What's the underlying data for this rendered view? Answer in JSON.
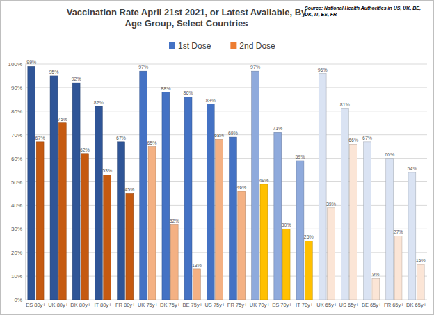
{
  "chart_data": {
    "type": "bar",
    "title": "Vaccination Rate April 21st 2021, or Latest Available, By Age Group, Select Countries",
    "annotations": [
      "Source: National Health Authorities in US, UK, BE, DK, IT, ES, FR"
    ],
    "categories": [
      "ES 80y+",
      "UK 80y+",
      "DK 80y+",
      "IT 80y+",
      "FR 80y+",
      "UK 75y+",
      "DK 75y+",
      "BE 75y+",
      "US 75y+",
      "FR 75y+",
      "UK 70y+",
      "ES 70y+",
      "IT 70y+",
      "UK 65y+",
      "US 65y+",
      "BE 65y+",
      "FR 65y+",
      "DK 65y+"
    ],
    "series": [
      {
        "name": "1st Dose",
        "color": "#4472c4",
        "colors": [
          "#2f5597",
          "#2f5597",
          "#2f5597",
          "#2f5597",
          "#2f5597",
          "#4472c4",
          "#4472c4",
          "#4472c4",
          "#4472c4",
          "#4472c4",
          "#8faadc",
          "#8faadc",
          "#8faadc",
          "#dae3f3",
          "#dae3f3",
          "#dae3f3",
          "#dae3f3",
          "#dae3f3"
        ],
        "values": [
          99,
          95,
          92,
          82,
          67,
          97,
          88,
          86,
          83,
          69,
          97,
          71,
          59,
          96,
          81,
          67,
          60,
          54
        ],
        "value_labels": [
          "99%",
          "95%",
          "92%",
          "82%",
          "67%",
          "97%",
          "88%",
          "86%",
          "83%",
          "69%",
          "97%",
          "71%",
          "59%",
          "96%",
          "81%",
          "67%",
          "60%",
          "54%"
        ]
      },
      {
        "name": "2nd Dose",
        "color": "#ed7d31",
        "colors": [
          "#c55a11",
          "#c55a11",
          "#c55a11",
          "#c55a11",
          "#c55a11",
          "#f4b183",
          "#f4b183",
          "#f4b183",
          "#f4b183",
          "#f4b183",
          "#ffc000",
          "#ffc000",
          "#ffc000",
          "#fbe5d6",
          "#fbe5d6",
          "#fbe5d6",
          "#fbe5d6",
          "#fbe5d6"
        ],
        "values": [
          67,
          75,
          62,
          53,
          45,
          65,
          32,
          13,
          68,
          46,
          49,
          30,
          25,
          39,
          66,
          9,
          27,
          15
        ],
        "value_labels": [
          "67%",
          "75%",
          "62%",
          "53%",
          "45%",
          "65%",
          "32%",
          "13%",
          "68%",
          "46%",
          "49%",
          "30%",
          "25%",
          "39%",
          "66%",
          "9%",
          "27%",
          "15%"
        ]
      }
    ],
    "ylim": [
      0,
      100
    ],
    "yticks": [
      {
        "value": 0,
        "label": "0%"
      },
      {
        "value": 10,
        "label": "10%"
      },
      {
        "value": 20,
        "label": "20%"
      },
      {
        "value": 30,
        "label": "30%"
      },
      {
        "value": 40,
        "label": "40%"
      },
      {
        "value": 50,
        "label": "50%"
      },
      {
        "value": 60,
        "label": "60%"
      },
      {
        "value": 70,
        "label": "70%"
      },
      {
        "value": 80,
        "label": "80%"
      },
      {
        "value": 90,
        "label": "90%"
      },
      {
        "value": 100,
        "label": "100%"
      }
    ],
    "grid": true,
    "legend": "top",
    "data_labels": true
  }
}
